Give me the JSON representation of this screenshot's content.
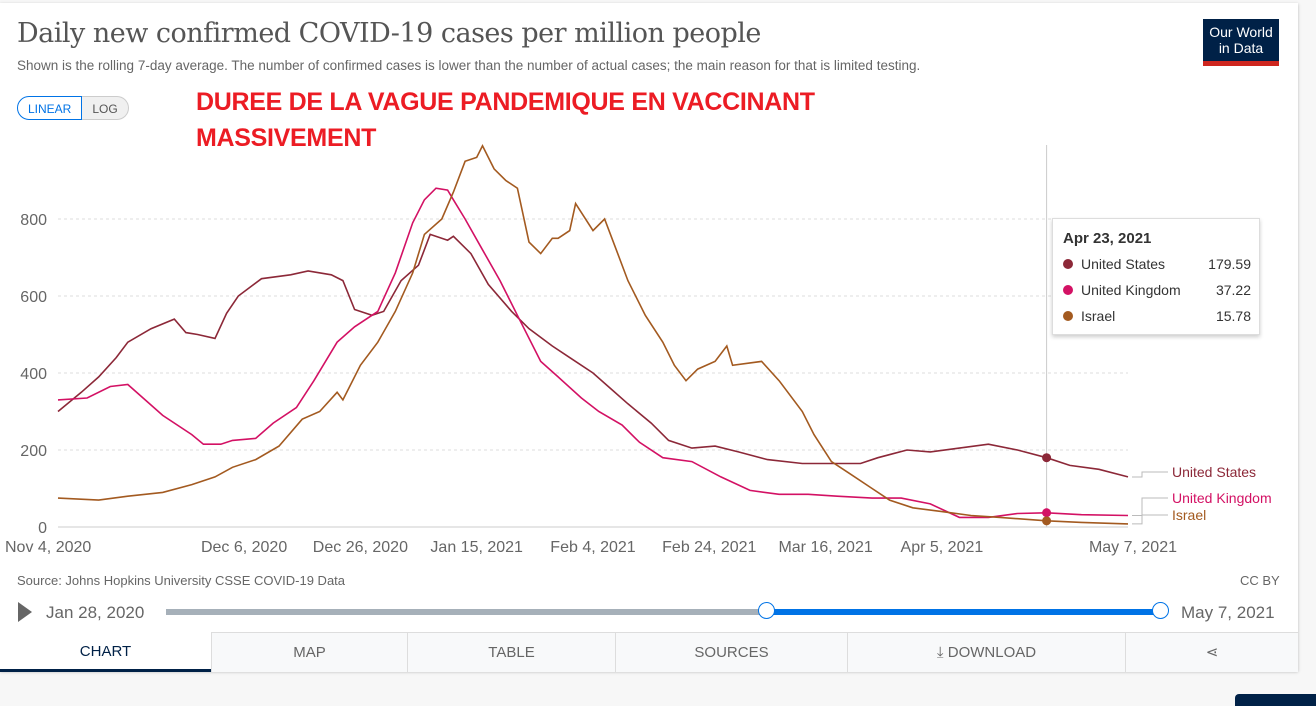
{
  "header": {
    "title": "Daily new confirmed COVID-19 cases per million people",
    "subtitle": "Shown is the rolling 7-day average. The number of confirmed cases is lower than the number of actual cases; the main reason for that is limited testing.",
    "logo": "Our World in Data",
    "logo_line1": "Our World",
    "logo_line2": "in Data"
  },
  "scale_toggle": {
    "linear": "LINEAR",
    "log": "LOG"
  },
  "annotation": {
    "line1": "DUREE DE LA VAGUE PANDEMIQUE EN VACCINANT",
    "line2": "MASSIVEMENT"
  },
  "tooltip": {
    "date": "Apr 23, 2021",
    "rows": [
      {
        "name": "United States",
        "value": "179.59"
      },
      {
        "name": "United Kingdom",
        "value": "37.22"
      },
      {
        "name": "Israel",
        "value": "15.78"
      }
    ]
  },
  "footer": {
    "source": "Source: Johns Hopkins University CSSE COVID-19 Data",
    "license": "CC BY"
  },
  "timeline": {
    "start": "Jan 28, 2020",
    "end": "May 7, 2021",
    "selected_start_fraction": 0.6,
    "selected_end_fraction": 1.0
  },
  "tabs": [
    "CHART",
    "MAP",
    "TABLE",
    "SOURCES",
    "DOWNLOAD",
    ""
  ],
  "chart_data": {
    "type": "line",
    "title": "Daily new confirmed COVID-19 cases per million people",
    "x_unit": "days since Nov 4, 2020",
    "xlim": [
      0,
      184
    ],
    "ylim": [
      0,
      1000
    ],
    "x_ticks": [
      {
        "day": 0,
        "label": "Nov 4, 2020"
      },
      {
        "day": 32,
        "label": "Dec 6, 2020"
      },
      {
        "day": 52,
        "label": "Dec 26, 2020"
      },
      {
        "day": 72,
        "label": "Jan 15, 2021"
      },
      {
        "day": 92,
        "label": "Feb 4, 2021"
      },
      {
        "day": 112,
        "label": "Feb 24, 2021"
      },
      {
        "day": 132,
        "label": "Mar 16, 2021"
      },
      {
        "day": 152,
        "label": "Apr 5, 2021"
      },
      {
        "day": 184,
        "label": "May 7, 2021"
      }
    ],
    "y_ticks": [
      0,
      200,
      400,
      600,
      800
    ],
    "highlight_day": 170,
    "series": [
      {
        "name": "United States",
        "color": "#8c2838",
        "x": [
          0,
          4,
          7,
          10,
          12,
          16,
          20,
          22,
          24,
          27,
          29,
          31,
          35,
          40,
          43,
          47,
          49,
          51,
          54,
          56,
          59,
          62,
          64,
          67,
          68,
          71,
          74,
          78,
          81,
          85,
          88,
          92,
          95,
          98,
          102,
          105,
          109,
          113,
          117,
          122,
          128,
          133,
          138,
          141,
          146,
          150,
          155,
          160,
          165,
          170,
          174,
          179,
          184
        ],
        "values": [
          300,
          350,
          390,
          440,
          480,
          515,
          540,
          505,
          500,
          490,
          555,
          600,
          645,
          655,
          665,
          655,
          640,
          565,
          550,
          560,
          640,
          680,
          760,
          745,
          755,
          710,
          630,
          560,
          515,
          470,
          440,
          400,
          360,
          320,
          270,
          225,
          205,
          210,
          195,
          175,
          165,
          165,
          165,
          180,
          200,
          195,
          205,
          215,
          200,
          180,
          160,
          150,
          130
        ]
      },
      {
        "name": "United Kingdom",
        "color": "#d31164",
        "x": [
          0,
          5,
          9,
          12,
          15,
          18,
          23,
          25,
          28,
          30,
          34,
          37,
          41,
          44,
          48,
          51,
          55,
          58,
          61,
          63,
          65,
          67,
          68,
          70,
          73,
          76,
          79,
          83,
          86,
          90,
          93,
          97,
          100,
          104,
          109,
          114,
          119,
          124,
          129,
          134,
          140,
          145,
          150,
          155,
          160,
          165,
          170,
          176,
          184
        ],
        "values": [
          330,
          335,
          365,
          370,
          330,
          290,
          240,
          215,
          215,
          225,
          230,
          270,
          310,
          380,
          480,
          520,
          560,
          660,
          790,
          850,
          880,
          875,
          850,
          800,
          720,
          640,
          550,
          430,
          390,
          335,
          300,
          265,
          220,
          180,
          170,
          130,
          95,
          85,
          85,
          80,
          75,
          75,
          60,
          25,
          25,
          35,
          37,
          32,
          30
        ]
      },
      {
        "name": "Israel",
        "color": "#a35a20",
        "x": [
          0,
          7,
          12,
          18,
          23,
          27,
          30,
          34,
          38,
          42,
          45,
          48,
          49,
          52,
          55,
          58,
          61,
          63,
          66,
          68,
          70,
          72,
          73,
          75,
          77,
          79,
          81,
          83,
          85,
          86,
          88,
          89,
          92,
          94,
          96,
          98,
          101,
          104,
          106,
          108,
          110,
          113,
          115,
          116,
          121,
          124,
          128,
          130,
          133,
          136,
          140,
          143,
          147,
          152,
          157,
          162,
          170,
          176,
          184
        ],
        "values": [
          75,
          70,
          80,
          90,
          110,
          130,
          155,
          175,
          210,
          280,
          300,
          350,
          330,
          420,
          480,
          560,
          660,
          760,
          800,
          870,
          950,
          960,
          990,
          930,
          900,
          880,
          740,
          710,
          750,
          750,
          770,
          840,
          770,
          800,
          720,
          640,
          550,
          480,
          420,
          380,
          410,
          430,
          470,
          420,
          430,
          380,
          300,
          240,
          170,
          140,
          100,
          70,
          50,
          40,
          30,
          25,
          16,
          12,
          8
        ]
      }
    ]
  }
}
